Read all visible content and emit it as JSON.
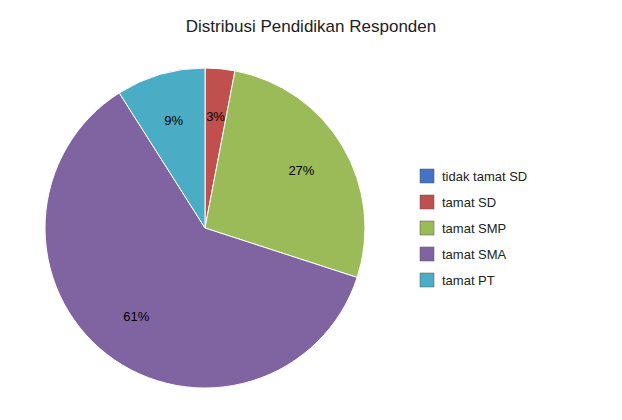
{
  "chart_data": {
    "type": "pie",
    "title": "Distribusi Pendidikan Responden",
    "categories": [
      "tidak tamat SD",
      "tamat SD",
      "tamat SMP",
      "tamat SMA",
      "tamat PT"
    ],
    "values": [
      0,
      3,
      27,
      61,
      9
    ],
    "value_labels": [
      null,
      "3%",
      "27%",
      "61%",
      "9%"
    ],
    "colors": [
      "#4472C4",
      "#C0504D",
      "#9BBB59",
      "#8064A2",
      "#4BACC6"
    ],
    "data_labels": true,
    "legend": "right"
  }
}
